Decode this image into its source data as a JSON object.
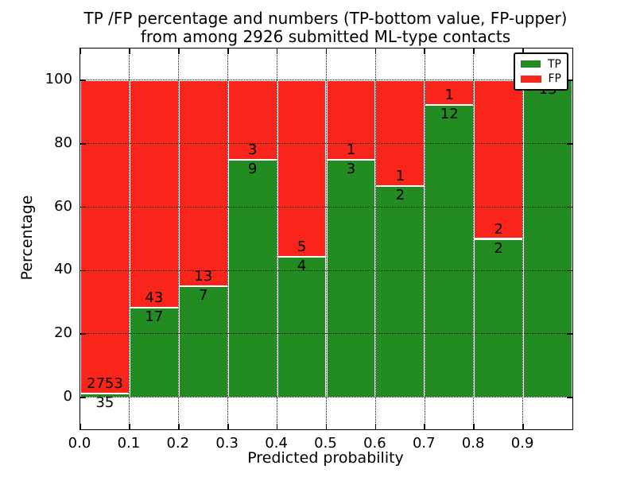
{
  "title": {
    "line1": "TP /FP percentage and numbers (TP-bottom value, FP-upper)",
    "line2": "from among 2926 submitted ML-type contacts"
  },
  "axes": {
    "xlabel": "Predicted probability",
    "ylabel": "Percentage",
    "yticks": [
      "0",
      "20",
      "40",
      "60",
      "80",
      "100"
    ],
    "xticks": [
      "0.0",
      "0.1",
      "0.2",
      "0.3",
      "0.4",
      "0.5",
      "0.6",
      "0.7",
      "0.8",
      "0.9"
    ]
  },
  "legend": {
    "items": [
      {
        "label": "TP",
        "color": "#228b22"
      },
      {
        "label": "FP",
        "color": "#f9241a"
      }
    ]
  },
  "chart_data": {
    "type": "bar",
    "stacked": true,
    "normalized_to_percent": true,
    "title": "TP /FP percentage and numbers (TP-bottom value, FP-upper) from among 2926 submitted ML-type contacts",
    "xlabel": "Predicted probability",
    "ylabel": "Percentage",
    "xlim": [
      0.0,
      1.0
    ],
    "ylim": [
      -10,
      110
    ],
    "yticks": [
      0,
      20,
      40,
      60,
      80,
      100
    ],
    "xtick_values": [
      0.0,
      0.1,
      0.2,
      0.3,
      0.4,
      0.5,
      0.6,
      0.7,
      0.8,
      0.9
    ],
    "grid": "dotted, drawn above bars",
    "legend_position": "upper right",
    "total_contacts": 2926,
    "colors": {
      "TP": "#228b22",
      "FP": "#f9241a"
    },
    "bins": [
      {
        "range": "0.0-0.1",
        "tp": 35,
        "fp": 2753,
        "tp_label": "35",
        "fp_label": "2753"
      },
      {
        "range": "0.1-0.2",
        "tp": 17,
        "fp": 43,
        "tp_label": "17",
        "fp_label": "43"
      },
      {
        "range": "0.2-0.3",
        "tp": 7,
        "fp": 13,
        "tp_label": "7",
        "fp_label": "13"
      },
      {
        "range": "0.3-0.4",
        "tp": 9,
        "fp": 3,
        "tp_label": "9",
        "fp_label": "3"
      },
      {
        "range": "0.4-0.5",
        "tp": 4,
        "fp": 5,
        "tp_label": "4",
        "fp_label": "5"
      },
      {
        "range": "0.5-0.6",
        "tp": 3,
        "fp": 1,
        "tp_label": "3",
        "fp_label": "1"
      },
      {
        "range": "0.6-0.7",
        "tp": 2,
        "fp": 1,
        "tp_label": "2",
        "fp_label": "1"
      },
      {
        "range": "0.7-0.8",
        "tp": 12,
        "fp": 1,
        "tp_label": "12",
        "fp_label": "1"
      },
      {
        "range": "0.8-0.9",
        "tp": 2,
        "fp": 2,
        "tp_label": "2",
        "fp_label": "2"
      },
      {
        "range": "0.9-1.0",
        "tp": 13,
        "fp": 0,
        "tp_label": "13",
        "fp_label": ""
      }
    ]
  }
}
